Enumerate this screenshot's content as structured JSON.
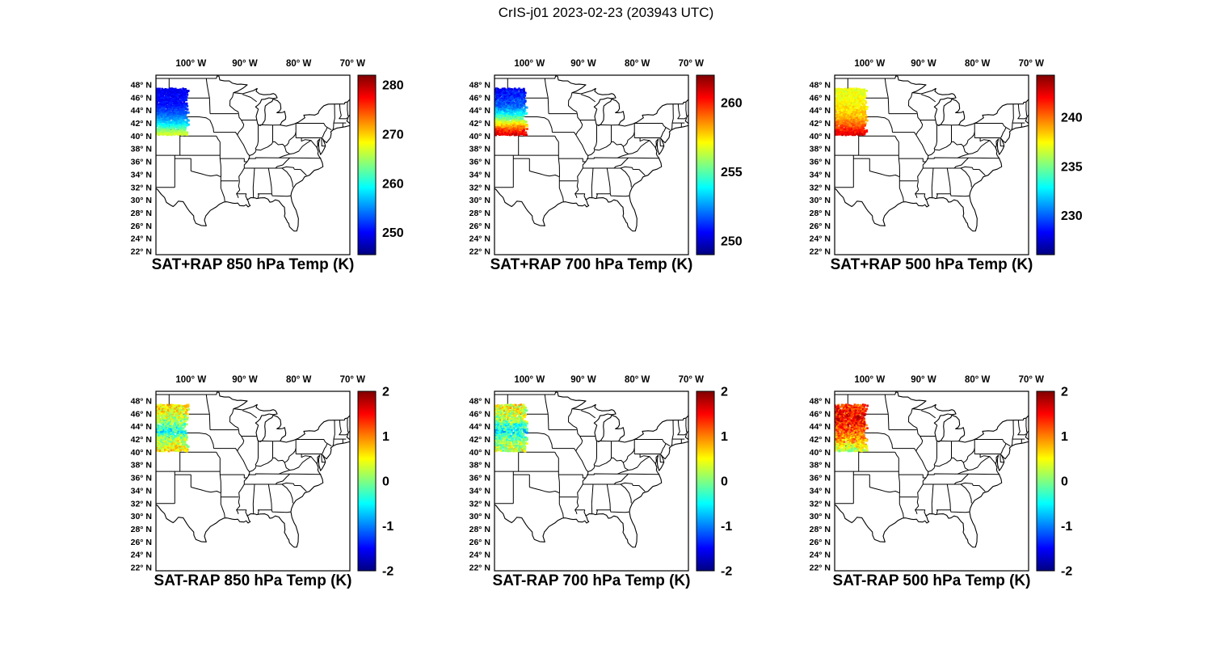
{
  "figure": {
    "title": "CrIS-j01 2023-02-23 (203943 UTC)"
  },
  "chart_data": {
    "type": "heatmap",
    "subtype": "geographic-satellite-swath",
    "colormap": "jet",
    "units": "K",
    "description": "Six-panel CrIS-j01 satellite sounding maps over CONUS. Top row: SAT+RAP temperature at 850/700/500 hPa. Bottom row: SAT-RAP temperature difference at 850/700/500 hPa. Data swath covers roughly 100.7-106.5W, 40.2-47.3N (MT/WY/Dakotas region).",
    "axes": {
      "lon_ticks": [
        100,
        90,
        80,
        70
      ],
      "lon_unit": "W",
      "lat_ticks": [
        48,
        46,
        44,
        42,
        40,
        38,
        36,
        34,
        32,
        30,
        28,
        26,
        24,
        22
      ],
      "lat_unit": "N",
      "lon_west": 106.5,
      "lon_east": 70.5,
      "lat_min": 21.5,
      "lat_max": 49.5,
      "grid": false
    },
    "panels": [
      {
        "id": "sat-plus-rap-850",
        "title": "SAT+RAP 850 hPa Temp (K)",
        "colorbar": {
          "min": 245.5,
          "max": 282,
          "ticks": [
            280,
            270,
            260,
            250
          ],
          "position": "right"
        },
        "swath": {
          "lon_west": 106.5,
          "lon_east": 100.7,
          "lat_min": 40.2,
          "lat_max": 47.3,
          "noise": 1.0,
          "dropout": 0.05,
          "profile": [
            [
              40.2,
              267
            ],
            [
              41,
              263
            ],
            [
              42,
              257.5
            ],
            [
              43.5,
              253
            ],
            [
              45,
              250.5
            ],
            [
              47.3,
              249.5
            ]
          ]
        }
      },
      {
        "id": "sat-plus-rap-700",
        "title": "SAT+RAP 700 hPa Temp (K)",
        "colorbar": {
          "min": 249,
          "max": 262,
          "ticks": [
            260,
            255,
            250
          ],
          "position": "right"
        },
        "swath": {
          "lon_west": 106.5,
          "lon_east": 100.7,
          "lat_min": 40.2,
          "lat_max": 47.3,
          "noise": 0.7,
          "dropout": 0.05,
          "profile": [
            [
              40.2,
              261
            ],
            [
              41,
              259.5
            ],
            [
              42,
              257
            ],
            [
              43,
              254.5
            ],
            [
              44.5,
              252
            ],
            [
              47.3,
              250.5
            ]
          ]
        }
      },
      {
        "id": "sat-plus-rap-500",
        "title": "SAT+RAP 500 hPa Temp (K)",
        "colorbar": {
          "min": 226,
          "max": 244.3,
          "ticks": [
            240,
            235,
            230
          ],
          "position": "right"
        },
        "swath": {
          "lon_west": 106.5,
          "lon_east": 100.7,
          "lat_min": 40.2,
          "lat_max": 47.3,
          "noise": 0.8,
          "dropout": 0.05,
          "profile": [
            [
              40.2,
              242.5
            ],
            [
              41.5,
              240.5
            ],
            [
              43,
              238.5
            ],
            [
              45,
              237.5
            ],
            [
              47.3,
              237
            ]
          ]
        }
      },
      {
        "id": "sat-minus-rap-850",
        "title": "SAT-RAP 850 hPa Temp (K)",
        "colorbar": {
          "min": -2,
          "max": 2,
          "ticks": [
            2,
            1,
            0,
            -1,
            -2
          ],
          "position": "right"
        },
        "swath": {
          "lon_west": 106.5,
          "lon_east": 100.7,
          "lat_min": 40.2,
          "lat_max": 47.3,
          "noise": 0.45,
          "dropout": 0.12,
          "profile": [
            [
              40.2,
              0.5
            ],
            [
              42,
              0.2
            ],
            [
              43,
              -0.4
            ],
            [
              44,
              -0.2
            ],
            [
              45.5,
              0.3
            ],
            [
              47.3,
              0.6
            ]
          ]
        }
      },
      {
        "id": "sat-minus-rap-700",
        "title": "SAT-RAP 700 hPa Temp (K)",
        "colorbar": {
          "min": -2,
          "max": 2,
          "ticks": [
            2,
            1,
            0,
            -1,
            -2
          ],
          "position": "right"
        },
        "swath": {
          "lon_west": 106.5,
          "lon_east": 100.7,
          "lat_min": 40.2,
          "lat_max": 47.3,
          "noise": 0.5,
          "dropout": 0.12,
          "profile": [
            [
              40.2,
              0.3
            ],
            [
              42,
              0
            ],
            [
              43,
              -0.5
            ],
            [
              44,
              -0.3
            ],
            [
              45,
              0.2
            ],
            [
              47.3,
              0.5
            ]
          ]
        }
      },
      {
        "id": "sat-minus-rap-500",
        "title": "SAT-RAP 500 hPa Temp (K)",
        "colorbar": {
          "min": -2,
          "max": 2,
          "ticks": [
            2,
            1,
            0,
            -1,
            -2
          ],
          "position": "right"
        },
        "swath": {
          "lon_west": 106.5,
          "lon_east": 100.7,
          "lat_min": 40.2,
          "lat_max": 47.3,
          "noise": 0.45,
          "dropout": 0.12,
          "profile": [
            [
              40.2,
              0.2
            ],
            [
              41,
              0.5
            ],
            [
              42,
              0.9
            ],
            [
              43.5,
              1.2
            ],
            [
              45,
              1.5
            ],
            [
              47.3,
              1.3
            ]
          ]
        }
      }
    ]
  }
}
